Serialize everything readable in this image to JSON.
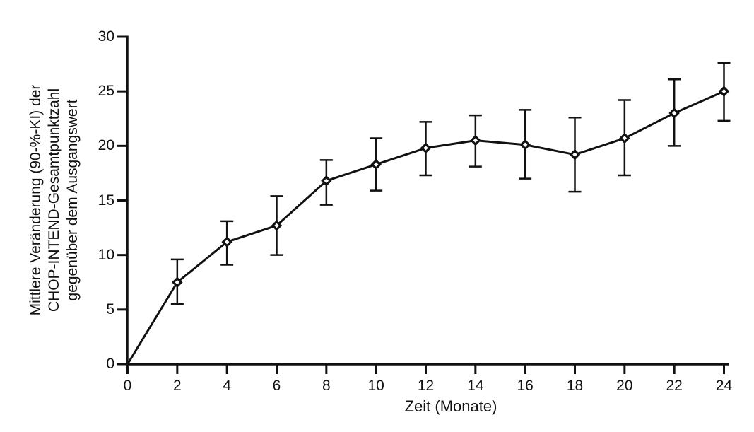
{
  "figure": {
    "background": "#ffffff",
    "ink_color": "#111111"
  },
  "chart_data": {
    "type": "line",
    "title": "",
    "xlabel": "Zeit (Monate)",
    "ylabel": "Mittlere Veränderung (90-%-KI) der\nCHOP-INTEND-Gesamtpunktzahl\ngegenüber dem Ausgangswert",
    "ylabel_lines": [
      "Mittlere Veränderung (90-%-KI) der",
      "CHOP-INTEND-Gesamtpunktzahl",
      "gegenüber dem Ausgangswert"
    ],
    "ci_level": "90%",
    "marker": "diamond",
    "grid": false,
    "legend": "none",
    "xlim": [
      0,
      24
    ],
    "ylim": [
      0,
      30
    ],
    "xticks": [
      0,
      2,
      4,
      6,
      8,
      10,
      12,
      14,
      16,
      18,
      20,
      22,
      24
    ],
    "yticks": [
      0,
      5,
      10,
      15,
      20,
      25,
      30
    ],
    "x": [
      0,
      2,
      4,
      6,
      8,
      10,
      12,
      14,
      16,
      18,
      20,
      22,
      24
    ],
    "series": [
      {
        "name": "Mittlere Veränderung der CHOP-INTEND-Gesamtpunktzahl",
        "values": [
          0,
          7.5,
          11.2,
          12.7,
          16.8,
          18.3,
          19.8,
          20.5,
          20.1,
          19.2,
          20.7,
          23.0,
          25.0
        ],
        "ci_low": [
          null,
          5.5,
          9.1,
          10.0,
          14.6,
          15.9,
          17.3,
          18.1,
          17.0,
          15.8,
          17.3,
          20.0,
          22.3
        ],
        "ci_high": [
          null,
          9.6,
          13.1,
          15.4,
          18.7,
          20.7,
          22.2,
          22.8,
          23.3,
          22.6,
          24.2,
          26.1,
          27.6
        ]
      }
    ]
  }
}
